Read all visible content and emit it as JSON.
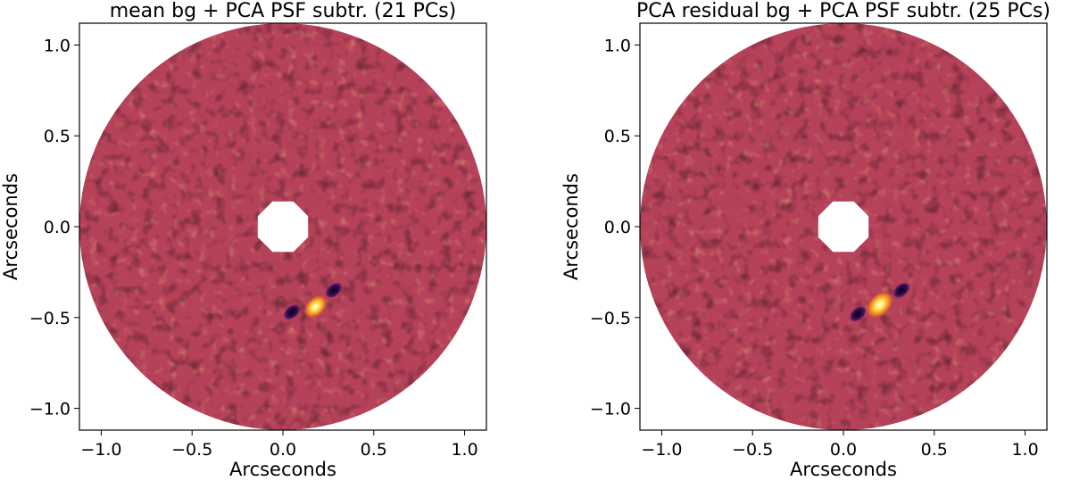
{
  "chart_data": [
    {
      "type": "heatmap",
      "title": "mean bg + PCA PSF subtr. (21 PCs)",
      "xlabel": "Arcseconds",
      "ylabel": "Arcseconds",
      "xlim": [
        -1.12,
        1.12
      ],
      "ylim": [
        -1.12,
        1.12
      ],
      "xticks": [
        -1.0,
        -0.5,
        0.0,
        0.5,
        1.0
      ],
      "yticks": [
        -1.0,
        -0.5,
        0.0,
        0.5,
        1.0
      ],
      "xtick_labels": [
        "−1.0",
        "−0.5",
        "0.0",
        "0.5",
        "1.0"
      ],
      "ytick_labels": [
        "−1.0",
        "−0.5",
        "0.0",
        "0.5",
        "1.0"
      ],
      "colormap": "inferno",
      "background_color": "#b6425a",
      "outer_radius": 1.12,
      "inner_mask_radius": 0.15,
      "source": {
        "x": 0.18,
        "y": -0.44,
        "peak": "#ffffbe",
        "size": 0.06
      },
      "dark_lobes": [
        {
          "x": 0.05,
          "y": -0.47
        },
        {
          "x": 0.28,
          "y": -0.35
        }
      ]
    },
    {
      "type": "heatmap",
      "title": "PCA residual bg + PCA PSF subtr. (25 PCs)",
      "xlabel": "Arcseconds",
      "ylabel": "Arcseconds",
      "xlim": [
        -1.12,
        1.12
      ],
      "ylim": [
        -1.12,
        1.12
      ],
      "xticks": [
        -1.0,
        -0.5,
        0.0,
        0.5,
        1.0
      ],
      "yticks": [
        -1.0,
        -0.5,
        0.0,
        0.5,
        1.0
      ],
      "xtick_labels": [
        "−1.0",
        "−0.5",
        "0.0",
        "0.5",
        "1.0"
      ],
      "ytick_labels": [
        "−1.0",
        "−0.5",
        "0.0",
        "0.5",
        "1.0"
      ],
      "colormap": "inferno",
      "background_color": "#b6425a",
      "outer_radius": 1.12,
      "inner_mask_radius": 0.15,
      "source": {
        "x": 0.2,
        "y": -0.43,
        "peak": "#ffffbe",
        "size": 0.07
      },
      "dark_lobes": [
        {
          "x": 0.08,
          "y": -0.48
        },
        {
          "x": 0.32,
          "y": -0.35
        }
      ]
    }
  ]
}
